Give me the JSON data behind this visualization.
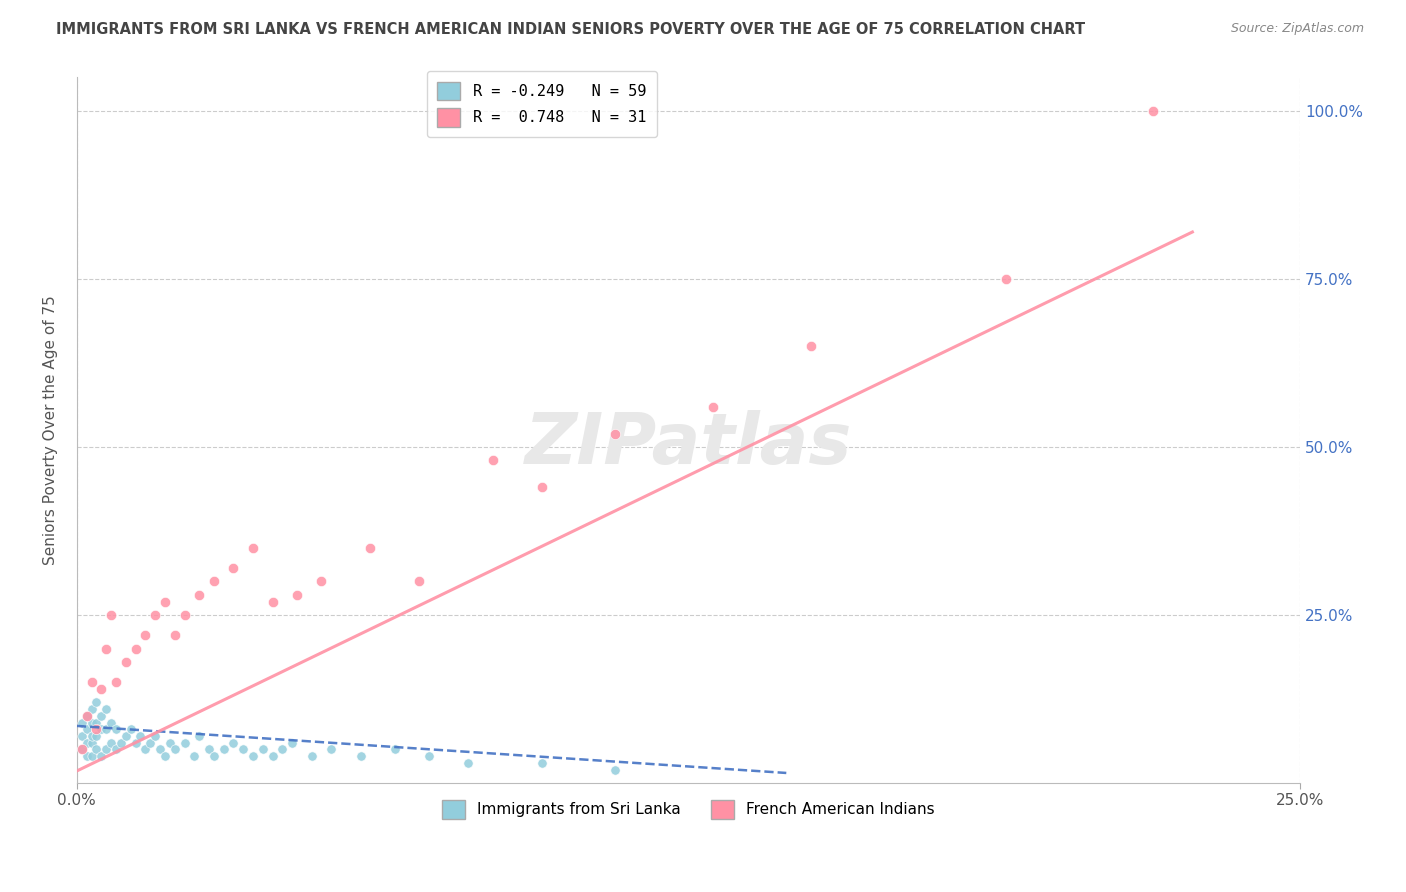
{
  "title": "IMMIGRANTS FROM SRI LANKA VS FRENCH AMERICAN INDIAN SENIORS POVERTY OVER THE AGE OF 75 CORRELATION CHART",
  "source": "Source: ZipAtlas.com",
  "ylabel": "Seniors Poverty Over the Age of 75",
  "xlim": [
    0.0,
    0.25
  ],
  "ylim": [
    0.0,
    1.05
  ],
  "series1_color": "#92CDDC",
  "series2_color": "#FF91A4",
  "series1_label": "Immigrants from Sri Lanka",
  "series2_label": "French American Indians",
  "R1": -0.249,
  "N1": 59,
  "R2": 0.748,
  "N2": 31,
  "background_color": "#FFFFFF",
  "grid_color": "#CCCCCC",
  "title_color": "#444444",
  "series1_line_color": "#4472C4",
  "series2_line_color": "#FF91A4",
  "right_tick_color": "#4472C4",
  "watermark_color": "#E8E8E8",
  "series1_x": [
    0.001,
    0.001,
    0.001,
    0.002,
    0.002,
    0.002,
    0.002,
    0.003,
    0.003,
    0.003,
    0.003,
    0.003,
    0.004,
    0.004,
    0.004,
    0.004,
    0.005,
    0.005,
    0.005,
    0.006,
    0.006,
    0.006,
    0.007,
    0.007,
    0.008,
    0.008,
    0.009,
    0.01,
    0.011,
    0.012,
    0.013,
    0.014,
    0.015,
    0.016,
    0.017,
    0.018,
    0.019,
    0.02,
    0.022,
    0.024,
    0.025,
    0.027,
    0.028,
    0.03,
    0.032,
    0.034,
    0.036,
    0.038,
    0.04,
    0.042,
    0.044,
    0.048,
    0.052,
    0.058,
    0.065,
    0.072,
    0.08,
    0.095,
    0.11
  ],
  "series1_y": [
    0.05,
    0.07,
    0.09,
    0.04,
    0.06,
    0.08,
    0.1,
    0.04,
    0.06,
    0.07,
    0.09,
    0.11,
    0.05,
    0.07,
    0.09,
    0.12,
    0.04,
    0.08,
    0.1,
    0.05,
    0.08,
    0.11,
    0.06,
    0.09,
    0.05,
    0.08,
    0.06,
    0.07,
    0.08,
    0.06,
    0.07,
    0.05,
    0.06,
    0.07,
    0.05,
    0.04,
    0.06,
    0.05,
    0.06,
    0.04,
    0.07,
    0.05,
    0.04,
    0.05,
    0.06,
    0.05,
    0.04,
    0.05,
    0.04,
    0.05,
    0.06,
    0.04,
    0.05,
    0.04,
    0.05,
    0.04,
    0.03,
    0.03,
    0.02
  ],
  "series2_x": [
    0.001,
    0.002,
    0.003,
    0.004,
    0.005,
    0.006,
    0.007,
    0.008,
    0.01,
    0.012,
    0.014,
    0.016,
    0.018,
    0.02,
    0.022,
    0.025,
    0.028,
    0.032,
    0.036,
    0.04,
    0.045,
    0.05,
    0.06,
    0.07,
    0.085,
    0.095,
    0.11,
    0.13,
    0.15,
    0.19,
    0.22
  ],
  "series2_y": [
    0.05,
    0.1,
    0.15,
    0.08,
    0.14,
    0.2,
    0.25,
    0.15,
    0.18,
    0.2,
    0.22,
    0.25,
    0.27,
    0.22,
    0.25,
    0.28,
    0.3,
    0.32,
    0.35,
    0.27,
    0.28,
    0.3,
    0.35,
    0.3,
    0.48,
    0.44,
    0.52,
    0.56,
    0.65,
    0.75,
    1.0
  ],
  "trendline1_x": [
    0.0,
    0.145
  ],
  "trendline1_y": [
    0.085,
    0.015
  ],
  "trendline2_x": [
    0.0,
    0.228
  ],
  "trendline2_y": [
    0.018,
    0.82
  ]
}
